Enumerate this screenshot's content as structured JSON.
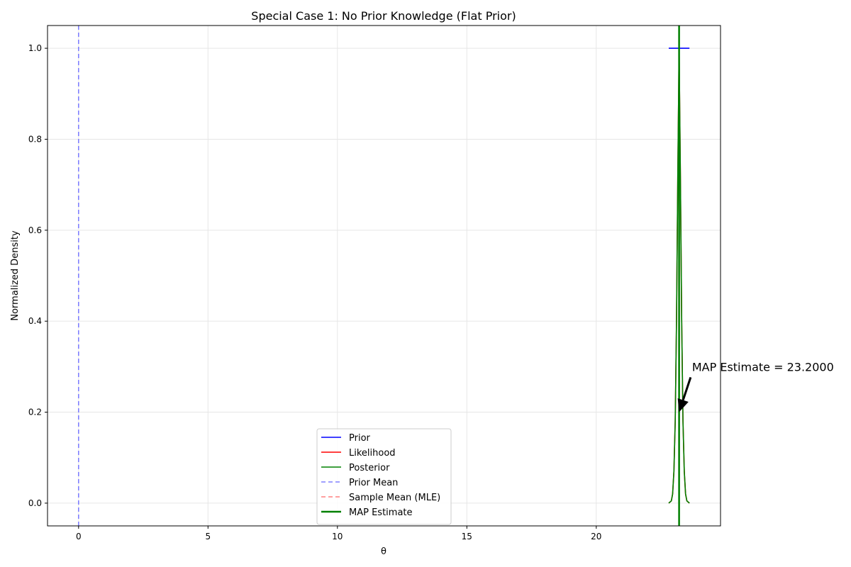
{
  "chart_data": {
    "type": "line",
    "title": "Special Case 1: No Prior Knowledge (Flat Prior)",
    "xlabel": "θ",
    "ylabel": "Normalized Density",
    "xlim": [
      -1.2,
      24.8
    ],
    "ylim": [
      -0.05,
      1.05
    ],
    "xticks": [
      0,
      5,
      10,
      15,
      20
    ],
    "yticks": [
      0.0,
      0.2,
      0.4,
      0.6,
      0.8,
      1.0
    ],
    "xtick_labels": [
      "0",
      "5",
      "10",
      "15",
      "20"
    ],
    "ytick_labels": [
      "0.0",
      "0.2",
      "0.4",
      "0.6",
      "0.8",
      "1.0"
    ],
    "grid": true,
    "legend_position": "lower center",
    "series": [
      {
        "name": "Prior",
        "color": "#0000ff",
        "style": "solid",
        "x": [
          22.8,
          23.6
        ],
        "y": [
          1.0,
          1.0
        ]
      },
      {
        "name": "Likelihood",
        "color": "#ff0000",
        "style": "solid",
        "x": [
          22.8,
          22.9,
          22.95,
          23.0,
          23.05,
          23.1,
          23.15,
          23.2,
          23.25,
          23.3,
          23.35,
          23.4,
          23.45,
          23.5,
          23.6
        ],
        "y": [
          0.0,
          0.005,
          0.02,
          0.07,
          0.18,
          0.4,
          0.72,
          1.0,
          0.72,
          0.4,
          0.18,
          0.07,
          0.02,
          0.005,
          0.0
        ]
      },
      {
        "name": "Posterior",
        "color": "#008000",
        "style": "solid",
        "x": [
          22.8,
          22.9,
          22.95,
          23.0,
          23.05,
          23.1,
          23.15,
          23.2,
          23.25,
          23.3,
          23.35,
          23.4,
          23.45,
          23.5,
          23.6
        ],
        "y": [
          0.0,
          0.005,
          0.02,
          0.07,
          0.18,
          0.4,
          0.72,
          1.0,
          0.72,
          0.4,
          0.18,
          0.07,
          0.02,
          0.005,
          0.0
        ]
      },
      {
        "name": "Prior Mean",
        "color": "#8080ff",
        "style": "dashed",
        "vline": 0
      },
      {
        "name": "Sample Mean (MLE)",
        "color": "#ff8080",
        "style": "dashed",
        "vline": 23.2
      },
      {
        "name": "MAP Estimate",
        "color": "#008000",
        "style": "solid-thick",
        "vline": 23.2
      }
    ],
    "annotation": {
      "text": "MAP Estimate = 23.2000",
      "point": [
        23.2,
        0.2
      ],
      "text_at": [
        23.7,
        0.3
      ]
    }
  }
}
